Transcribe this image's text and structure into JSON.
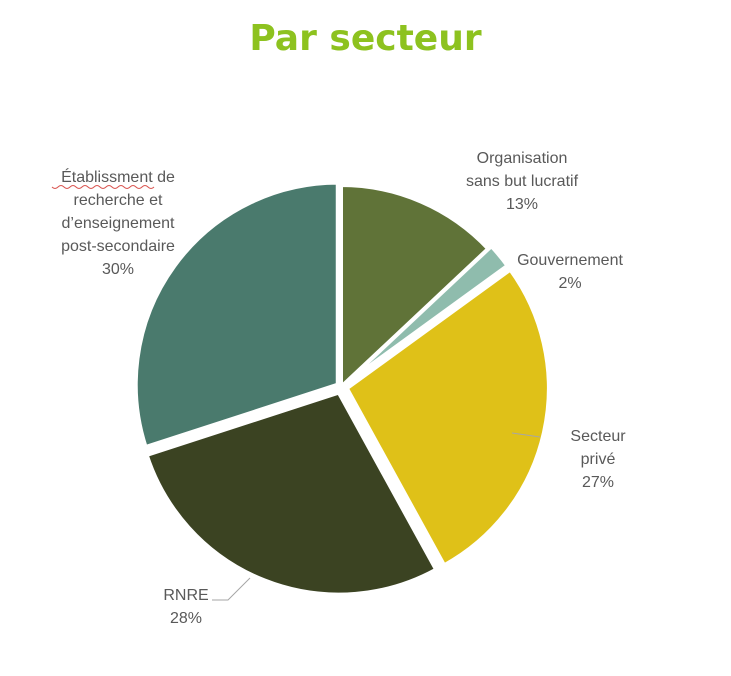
{
  "chart_data": {
    "type": "pie",
    "title": "Par secteur",
    "slices": [
      {
        "label": "Organisation sans but lucratif",
        "lines": [
          "Organisation",
          "sans but lucratif"
        ],
        "value_label": "13%",
        "value": 13,
        "color": "#607338"
      },
      {
        "label": "Gouvernement",
        "lines": [
          "Gouvernement"
        ],
        "value_label": "2%",
        "value": 2,
        "color": "#8fbcad"
      },
      {
        "label": "Secteur privé",
        "lines": [
          "Secteur",
          "privé"
        ],
        "value_label": "27%",
        "value": 27,
        "color": "#dfc118"
      },
      {
        "label": "RNRE",
        "lines": [
          "RNRE"
        ],
        "value_label": "28%",
        "value": 28,
        "color": "#3b4322"
      },
      {
        "label": "Établissment de recherche et d’enseignement post-secondaire",
        "lines": [
          "Établissment de",
          "recherche et",
          "d’enseignement",
          "post-secondaire"
        ],
        "value_label": "30%",
        "value": 30,
        "color": "#4a7a6d"
      }
    ]
  }
}
